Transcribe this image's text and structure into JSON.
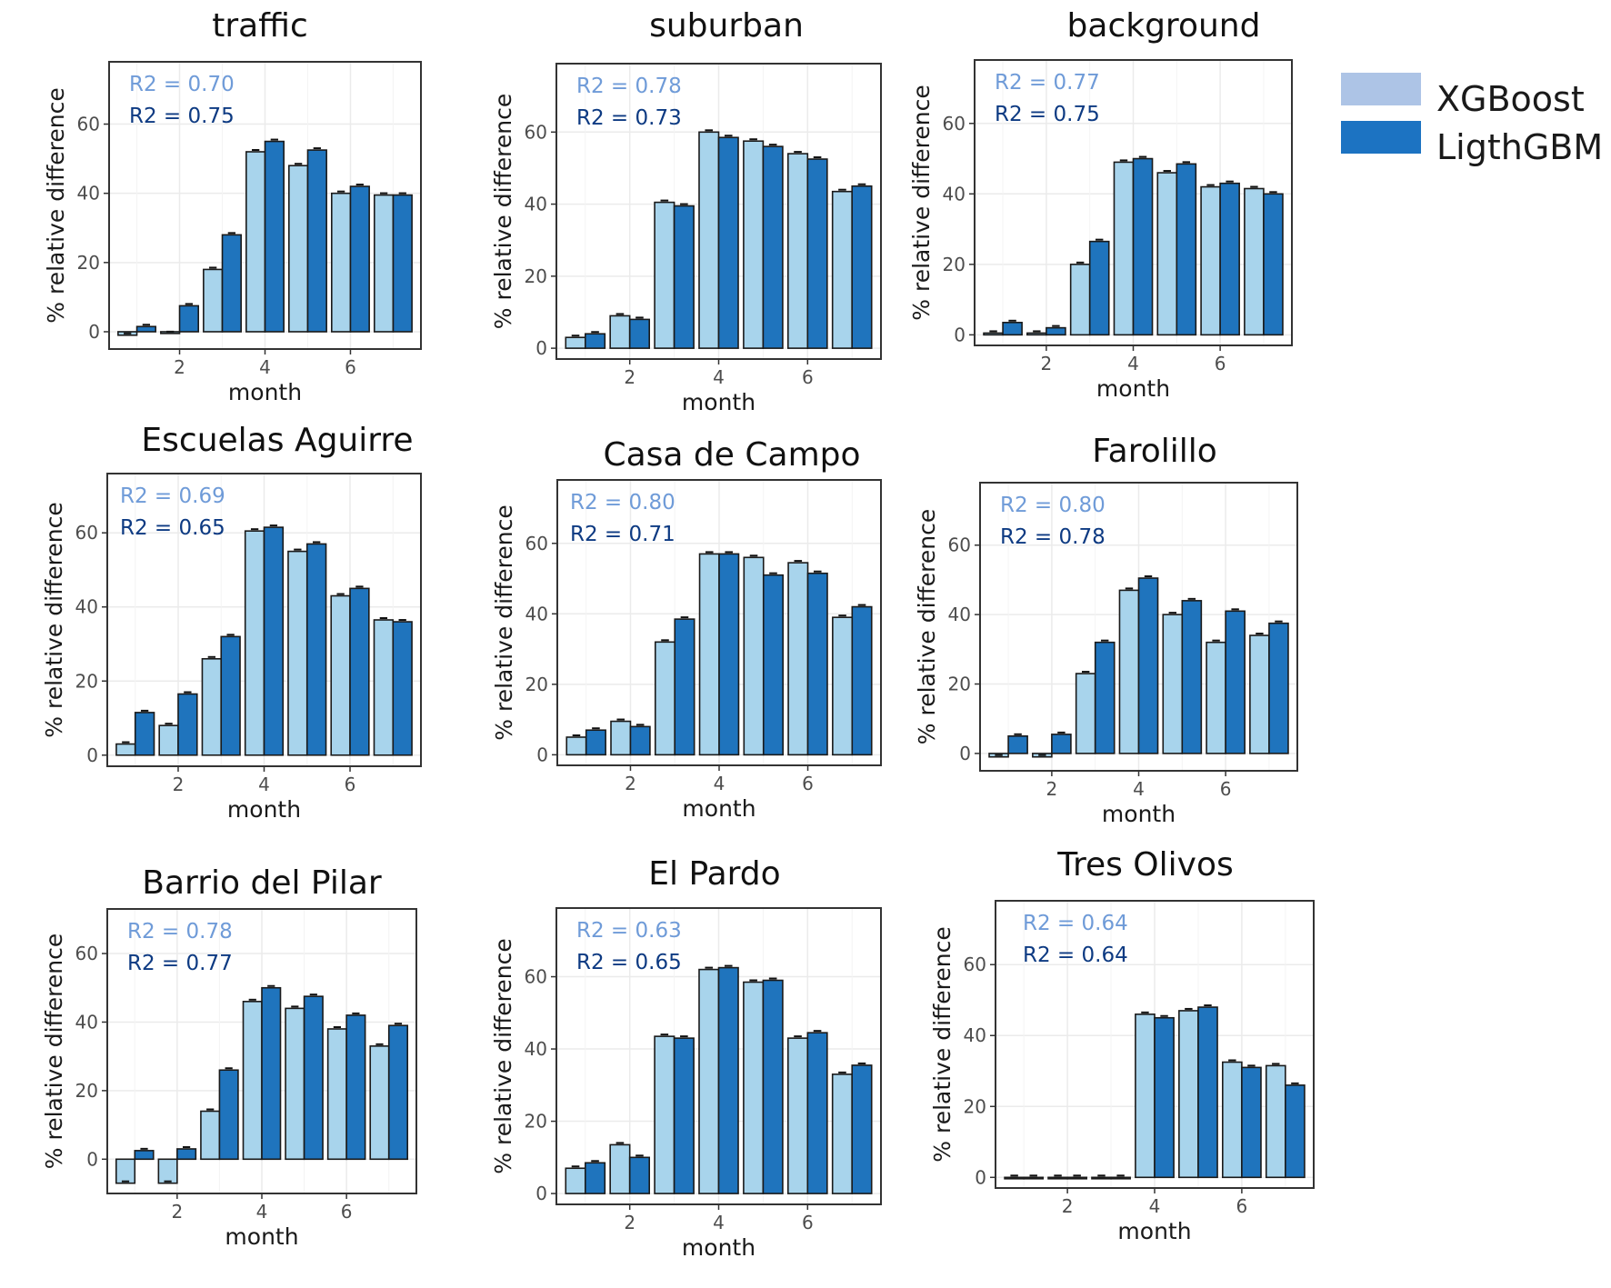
{
  "colors": {
    "xgboost": "#a8d4ec",
    "lightgbm": "#1f74bd",
    "xgboost_legend": "#adc4e6",
    "lightgbm_legend": "#1c73c2",
    "r2_xgboost": "#6f9bd8",
    "r2_lightgbm": "#0d3a82",
    "grid": "#ebebeb",
    "frame": "#333333"
  },
  "legend": {
    "items": [
      {
        "label": "XGBoost",
        "color": "#adc4e6"
      },
      {
        "label": "LigthGBM",
        "color": "#1c73c2"
      }
    ]
  },
  "chart_data": [
    {
      "type": "bar",
      "title": "traffic",
      "xlabel": "month",
      "ylabel": "% relative difference",
      "x": [
        1,
        2,
        3,
        4,
        5,
        6,
        7
      ],
      "xticks": [
        2,
        4,
        6
      ],
      "yticks": [
        0,
        20,
        40,
        60
      ],
      "ylim": [
        -5,
        78
      ],
      "series": [
        {
          "name": "XGBoost",
          "values": [
            -1,
            -0.5,
            18,
            52,
            48,
            40,
            39.5
          ]
        },
        {
          "name": "LigthGBM",
          "values": [
            1.5,
            7.5,
            28,
            55,
            52.5,
            42,
            39.5
          ]
        }
      ],
      "r2": [
        {
          "label": "R2 = 0.70",
          "series": "XGBoost"
        },
        {
          "label": "R2 = 0.75",
          "series": "LigthGBM"
        }
      ]
    },
    {
      "type": "bar",
      "title": "suburban",
      "xlabel": "month",
      "ylabel": "% relative difference",
      "x": [
        1,
        2,
        3,
        4,
        5,
        6,
        7
      ],
      "xticks": [
        2,
        4,
        6
      ],
      "yticks": [
        0,
        20,
        40,
        60
      ],
      "ylim": [
        -3,
        79
      ],
      "series": [
        {
          "name": "XGBoost",
          "values": [
            3,
            9,
            40.5,
            60,
            57.5,
            54,
            43.5
          ]
        },
        {
          "name": "LigthGBM",
          "values": [
            4,
            8,
            39.5,
            58.5,
            56,
            52.5,
            45
          ]
        }
      ],
      "r2": [
        {
          "label": "R2 = 0.78",
          "series": "XGBoost"
        },
        {
          "label": "R2 = 0.73",
          "series": "LigthGBM"
        }
      ]
    },
    {
      "type": "bar",
      "title": "background",
      "xlabel": "month",
      "ylabel": "% relative difference",
      "x": [
        1,
        2,
        3,
        4,
        5,
        6,
        7
      ],
      "xticks": [
        2,
        4,
        6
      ],
      "yticks": [
        0,
        20,
        40,
        60
      ],
      "ylim": [
        -3,
        78
      ],
      "series": [
        {
          "name": "XGBoost",
          "values": [
            0.5,
            0.5,
            20,
            49,
            46,
            42,
            41.5
          ]
        },
        {
          "name": "LigthGBM",
          "values": [
            3.5,
            2,
            26.5,
            50,
            48.5,
            43,
            40
          ]
        }
      ],
      "r2": [
        {
          "label": "R2 = 0.77",
          "series": "XGBoost"
        },
        {
          "label": "R2 = 0.75",
          "series": "LigthGBM"
        }
      ]
    },
    {
      "type": "bar",
      "title": "Escuelas Aguirre",
      "xlabel": "month",
      "ylabel": "% relative difference",
      "x": [
        1,
        2,
        3,
        4,
        5,
        6,
        7
      ],
      "xticks": [
        2,
        4,
        6
      ],
      "yticks": [
        0,
        20,
        40,
        60
      ],
      "ylim": [
        -3,
        76
      ],
      "series": [
        {
          "name": "XGBoost",
          "values": [
            3,
            8,
            26,
            60.5,
            55,
            43,
            36.5
          ]
        },
        {
          "name": "LigthGBM",
          "values": [
            11.5,
            16.5,
            32,
            61.5,
            57,
            45,
            36
          ]
        }
      ],
      "r2": [
        {
          "label": "R2 = 0.69",
          "series": "XGBoost"
        },
        {
          "label": "R2 = 0.65",
          "series": "LigthGBM"
        }
      ]
    },
    {
      "type": "bar",
      "title": "Casa de Campo",
      "xlabel": "month",
      "ylabel": "% relative difference",
      "x": [
        1,
        2,
        3,
        4,
        5,
        6,
        7
      ],
      "xticks": [
        2,
        4,
        6
      ],
      "yticks": [
        0,
        20,
        40,
        60
      ],
      "ylim": [
        -3,
        78
      ],
      "series": [
        {
          "name": "XGBoost",
          "values": [
            5,
            9.5,
            32,
            57,
            56,
            54.5,
            39
          ]
        },
        {
          "name": "LigthGBM",
          "values": [
            7,
            8,
            38.5,
            57,
            51,
            51.5,
            42
          ]
        }
      ],
      "r2": [
        {
          "label": "R2 = 0.80",
          "series": "XGBoost"
        },
        {
          "label": "R2 = 0.71",
          "series": "LigthGBM"
        }
      ]
    },
    {
      "type": "bar",
      "title": "Farolillo",
      "xlabel": "month",
      "ylabel": "% relative difference",
      "x": [
        1,
        2,
        3,
        4,
        5,
        6,
        7
      ],
      "xticks": [
        2,
        4,
        6
      ],
      "yticks": [
        0,
        20,
        40,
        60
      ],
      "ylim": [
        -5,
        78
      ],
      "series": [
        {
          "name": "XGBoost",
          "values": [
            -1,
            -1,
            23,
            47,
            40,
            32,
            34
          ]
        },
        {
          "name": "LigthGBM",
          "values": [
            5,
            5.5,
            32,
            50.5,
            44,
            41,
            37.5
          ]
        }
      ],
      "r2": [
        {
          "label": "R2 = 0.80",
          "series": "XGBoost"
        },
        {
          "label": "R2 = 0.78",
          "series": "LigthGBM"
        }
      ]
    },
    {
      "type": "bar",
      "title": "Barrio del Pilar",
      "xlabel": "month",
      "ylabel": "% relative difference",
      "x": [
        1,
        2,
        3,
        4,
        5,
        6,
        7
      ],
      "xticks": [
        2,
        4,
        6
      ],
      "yticks": [
        0,
        20,
        40,
        60
      ],
      "ylim": [
        -10,
        73
      ],
      "series": [
        {
          "name": "XGBoost",
          "values": [
            -7,
            -7,
            14,
            46,
            44,
            38,
            33
          ]
        },
        {
          "name": "LigthGBM",
          "values": [
            2.5,
            3,
            26,
            50,
            47.5,
            42,
            39
          ]
        }
      ],
      "r2": [
        {
          "label": "R2 = 0.78",
          "series": "XGBoost"
        },
        {
          "label": "R2 = 0.77",
          "series": "LigthGBM"
        }
      ]
    },
    {
      "type": "bar",
      "title": "El Pardo",
      "xlabel": "month",
      "ylabel": "% relative difference",
      "x": [
        1,
        2,
        3,
        4,
        5,
        6,
        7
      ],
      "xticks": [
        2,
        4,
        6
      ],
      "yticks": [
        0,
        20,
        40,
        60
      ],
      "ylim": [
        -3,
        79
      ],
      "series": [
        {
          "name": "XGBoost",
          "values": [
            7,
            13.5,
            43.5,
            62,
            58.5,
            43,
            33
          ]
        },
        {
          "name": "LigthGBM",
          "values": [
            8.5,
            10,
            43,
            62.5,
            59,
            44.5,
            35.5
          ]
        }
      ],
      "r2": [
        {
          "label": "R2 = 0.63",
          "series": "XGBoost"
        },
        {
          "label": "R2 = 0.65",
          "series": "LigthGBM"
        }
      ]
    },
    {
      "type": "bar",
      "title": "Tres Olivos",
      "xlabel": "month",
      "ylabel": "% relative difference",
      "x": [
        1,
        2,
        3,
        4,
        5,
        6,
        7
      ],
      "xticks": [
        2,
        4,
        6
      ],
      "yticks": [
        0,
        20,
        40,
        60
      ],
      "ylim": [
        -3,
        78
      ],
      "series": [
        {
          "name": "XGBoost",
          "values": [
            0,
            0,
            0,
            46,
            47,
            32.5,
            31.5
          ]
        },
        {
          "name": "LigthGBM",
          "values": [
            0,
            0,
            0,
            45,
            48,
            31,
            26
          ]
        }
      ],
      "r2": [
        {
          "label": "R2 = 0.64",
          "series": "XGBoost"
        },
        {
          "label": "R2 = 0.64",
          "series": "LigthGBM"
        }
      ]
    }
  ]
}
